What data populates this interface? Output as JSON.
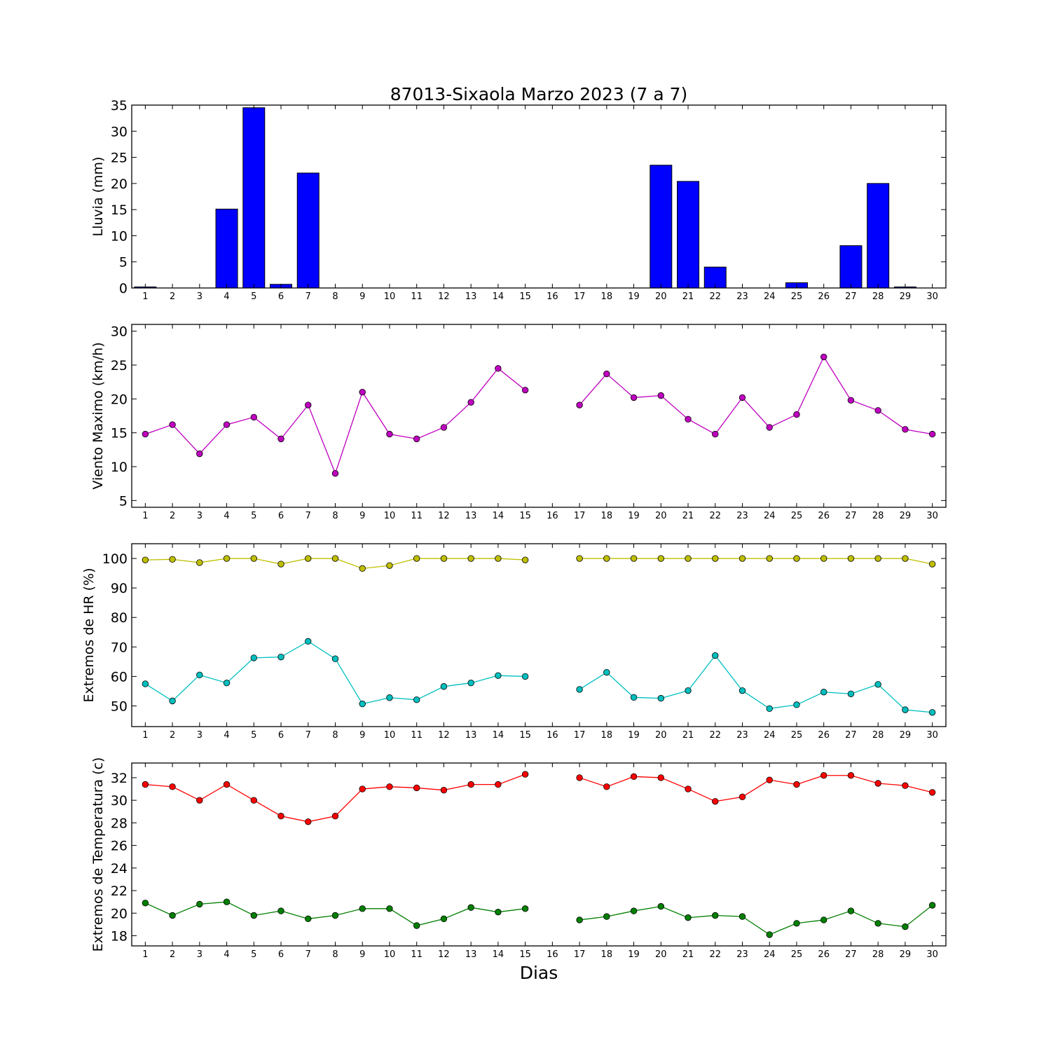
{
  "chart_data": {
    "title": "87013-Sixaola Marzo 2023  (7 a 7)",
    "xlabel": "Dias",
    "days": [
      1,
      2,
      3,
      4,
      5,
      6,
      7,
      8,
      9,
      10,
      11,
      12,
      13,
      14,
      15,
      16,
      17,
      18,
      19,
      20,
      21,
      22,
      23,
      24,
      25,
      26,
      27,
      28,
      29,
      30
    ],
    "panels": [
      {
        "type": "bar",
        "ylabel": "Lluvia (mm)",
        "ylim": [
          0,
          35
        ],
        "yticks": [
          0,
          5,
          10,
          15,
          20,
          25,
          30,
          35
        ],
        "series": [
          {
            "color": "#0000ff",
            "values": [
              0.2,
              0,
              0,
              15.1,
              34.5,
              0.7,
              22.0,
              0,
              0,
              0,
              0,
              0,
              0,
              0,
              0,
              0,
              0,
              0,
              0,
              23.5,
              20.4,
              4.0,
              0,
              0,
              1.0,
              0,
              8.1,
              20.0,
              0.2,
              0
            ]
          }
        ]
      },
      {
        "type": "line",
        "ylabel": "Viento Maximo (km/h)",
        "ylim": [
          4,
          31
        ],
        "yticks": [
          5,
          10,
          15,
          20,
          25,
          30
        ],
        "series": [
          {
            "color": "#bf00bf",
            "values": [
              14.8,
              16.2,
              11.9,
              16.2,
              17.3,
              14.1,
              19.1,
              9.0,
              21.0,
              14.8,
              14.1,
              15.8,
              19.5,
              24.5,
              21.3,
              null,
              19.1,
              23.7,
              20.2,
              20.5,
              17.0,
              14.8,
              20.2,
              15.8,
              17.7,
              26.2,
              19.8,
              18.3,
              15.5,
              14.8
            ]
          }
        ]
      },
      {
        "type": "line",
        "ylabel": "Extremos de HR (%)",
        "ylim": [
          43,
          105
        ],
        "yticks": [
          50,
          60,
          70,
          80,
          90,
          100
        ],
        "series": [
          {
            "color": "#bfbf00",
            "values": [
              99.5,
              99.7,
              98.6,
              100,
              100,
              98.1,
              100,
              100,
              96.6,
              97.6,
              100,
              100,
              100,
              100,
              99.5,
              null,
              100,
              100,
              100,
              100,
              100,
              100,
              100,
              100,
              100,
              100,
              100,
              100,
              100,
              98.1
            ]
          },
          {
            "color": "#00bfbf",
            "values": [
              57.5,
              51.7,
              60.5,
              57.8,
              66.3,
              66.6,
              71.9,
              66.0,
              50.7,
              52.8,
              52.1,
              56.6,
              57.8,
              60.3,
              60.0,
              null,
              55.6,
              61.4,
              52.9,
              52.6,
              55.2,
              67.1,
              55.2,
              49.1,
              50.4,
              54.7,
              54.1,
              57.3,
              48.7,
              47.8
            ]
          }
        ]
      },
      {
        "type": "line",
        "ylabel": "Extremos de Temperatura (c)",
        "ylim": [
          17.1,
          33.3
        ],
        "yticks": [
          18,
          20,
          22,
          24,
          26,
          28,
          30,
          32
        ],
        "series": [
          {
            "color": "#ff0000",
            "values": [
              31.4,
              31.2,
              30.0,
              31.4,
              30.0,
              28.6,
              28.1,
              28.6,
              31.0,
              31.2,
              31.1,
              30.9,
              31.4,
              31.4,
              32.3,
              null,
              32.0,
              31.2,
              32.1,
              32.0,
              31.0,
              29.9,
              30.3,
              31.8,
              31.4,
              32.2,
              32.2,
              31.5,
              31.3,
              30.7
            ]
          },
          {
            "color": "#007f00",
            "values": [
              20.9,
              19.8,
              20.8,
              21.0,
              19.8,
              20.2,
              19.5,
              19.8,
              20.4,
              20.4,
              18.9,
              19.5,
              20.5,
              20.1,
              20.4,
              null,
              19.4,
              19.7,
              20.2,
              20.6,
              19.6,
              19.8,
              19.7,
              18.1,
              19.1,
              19.4,
              20.2,
              19.1,
              18.8,
              20.7
            ]
          }
        ]
      }
    ]
  }
}
